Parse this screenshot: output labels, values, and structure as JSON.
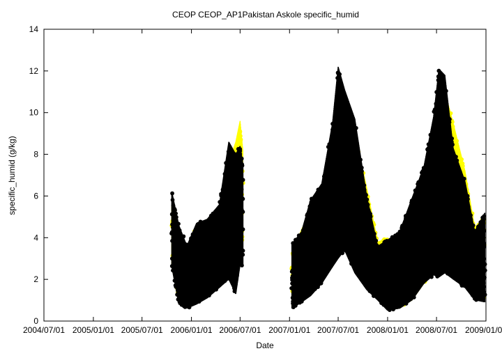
{
  "chart_data": {
    "type": "scatter",
    "title": "CEOP CEOP_AP1Pakistan Askole  specific_humid",
    "xlabel": "Date",
    "ylabel": "specific_humid (g/kg)",
    "ylim": [
      0,
      14
    ],
    "y_ticks": [
      0,
      2,
      4,
      6,
      8,
      10,
      12,
      14
    ],
    "xlim": [
      "2004/07/01",
      "2009/01/01"
    ],
    "x_ticks": [
      "2004/07/01",
      "2005/01/01",
      "2005/07/01",
      "2006/01/01",
      "2006/07/01",
      "2007/01/01",
      "2007/07/01",
      "2008/01/01",
      "2008/07/01",
      "2009/01/01"
    ],
    "grid": false,
    "series": [
      {
        "color": "#ffff00",
        "marker": "circle",
        "envelope": {
          "dates": [
            "2005/10/20",
            "2005/11/15",
            "2005/12/15",
            "2006/01/20",
            "2006/03/01",
            "2006/04/15",
            "2006/05/20",
            "2006/06/15",
            "2006/07/01",
            "2006/07/12",
            "2007/01/10",
            "2007/02/15",
            "2007/03/20",
            "2007/05/01",
            "2007/06/10",
            "2007/07/01",
            "2007/07/25",
            "2007/09/01",
            "2007/10/15",
            "2007/11/25",
            "2008/01/01",
            "2008/02/15",
            "2008/04/01",
            "2008/05/15",
            "2008/06/20",
            "2008/07/10",
            "2008/08/01",
            "2008/09/01",
            "2008/10/15",
            "2008/11/20",
            "2008/12/28"
          ],
          "upper": [
            5.5,
            4.2,
            3.4,
            4.6,
            4.9,
            5.5,
            7.6,
            8.6,
            9.6,
            8.1,
            3.3,
            4.4,
            5.3,
            6.3,
            9.0,
            9.7,
            10.3,
            9.0,
            6.4,
            3.8,
            4.0,
            3.5,
            5.6,
            7.0,
            9.3,
            10.5,
            11.0,
            9.5,
            7.2,
            4.5,
            5.0
          ],
          "lower": [
            2.6,
            1.0,
            0.7,
            0.9,
            1.3,
            1.8,
            2.3,
            3.0,
            3.5,
            4.0,
            0.7,
            1.0,
            1.4,
            2.0,
            2.6,
            3.2,
            3.5,
            2.8,
            2.2,
            1.1,
            0.6,
            0.6,
            1.0,
            1.8,
            2.4,
            3.0,
            2.7,
            2.4,
            1.9,
            1.0,
            1.1
          ]
        }
      },
      {
        "color": "#000000",
        "marker": "circle",
        "envelope": {
          "dates": [
            "2005/10/20",
            "2005/11/15",
            "2005/12/15",
            "2006/01/20",
            "2006/03/01",
            "2006/04/15",
            "2006/05/20",
            "2006/06/15",
            "2006/07/01",
            "2006/07/12",
            "2007/01/10",
            "2007/02/15",
            "2007/03/20",
            "2007/05/01",
            "2007/06/10",
            "2007/07/01",
            "2007/07/25",
            "2007/09/01",
            "2007/10/15",
            "2007/11/25",
            "2008/01/01",
            "2008/02/15",
            "2008/04/01",
            "2008/05/15",
            "2008/06/20",
            "2008/07/10",
            "2008/08/01",
            "2008/09/01",
            "2008/10/15",
            "2008/11/20",
            "2008/12/28"
          ],
          "upper": [
            6.2,
            4.6,
            3.6,
            4.7,
            4.9,
            5.6,
            8.6,
            8.0,
            8.4,
            7.5,
            3.7,
            4.3,
            5.8,
            6.6,
            9.5,
            12.2,
            11.1,
            9.7,
            6.0,
            3.6,
            3.9,
            4.3,
            5.9,
            7.4,
            9.8,
            12.1,
            11.8,
            8.3,
            6.7,
            4.3,
            5.2
          ],
          "lower": [
            2.6,
            0.8,
            0.6,
            0.8,
            1.1,
            1.6,
            2.0,
            1.3,
            2.7,
            2.6,
            0.6,
            0.9,
            1.2,
            1.8,
            2.6,
            3.0,
            3.4,
            2.3,
            1.5,
            1.0,
            0.5,
            0.6,
            1.0,
            1.8,
            2.2,
            2.1,
            2.3,
            2.0,
            1.6,
            1.0,
            0.9
          ]
        }
      }
    ]
  }
}
